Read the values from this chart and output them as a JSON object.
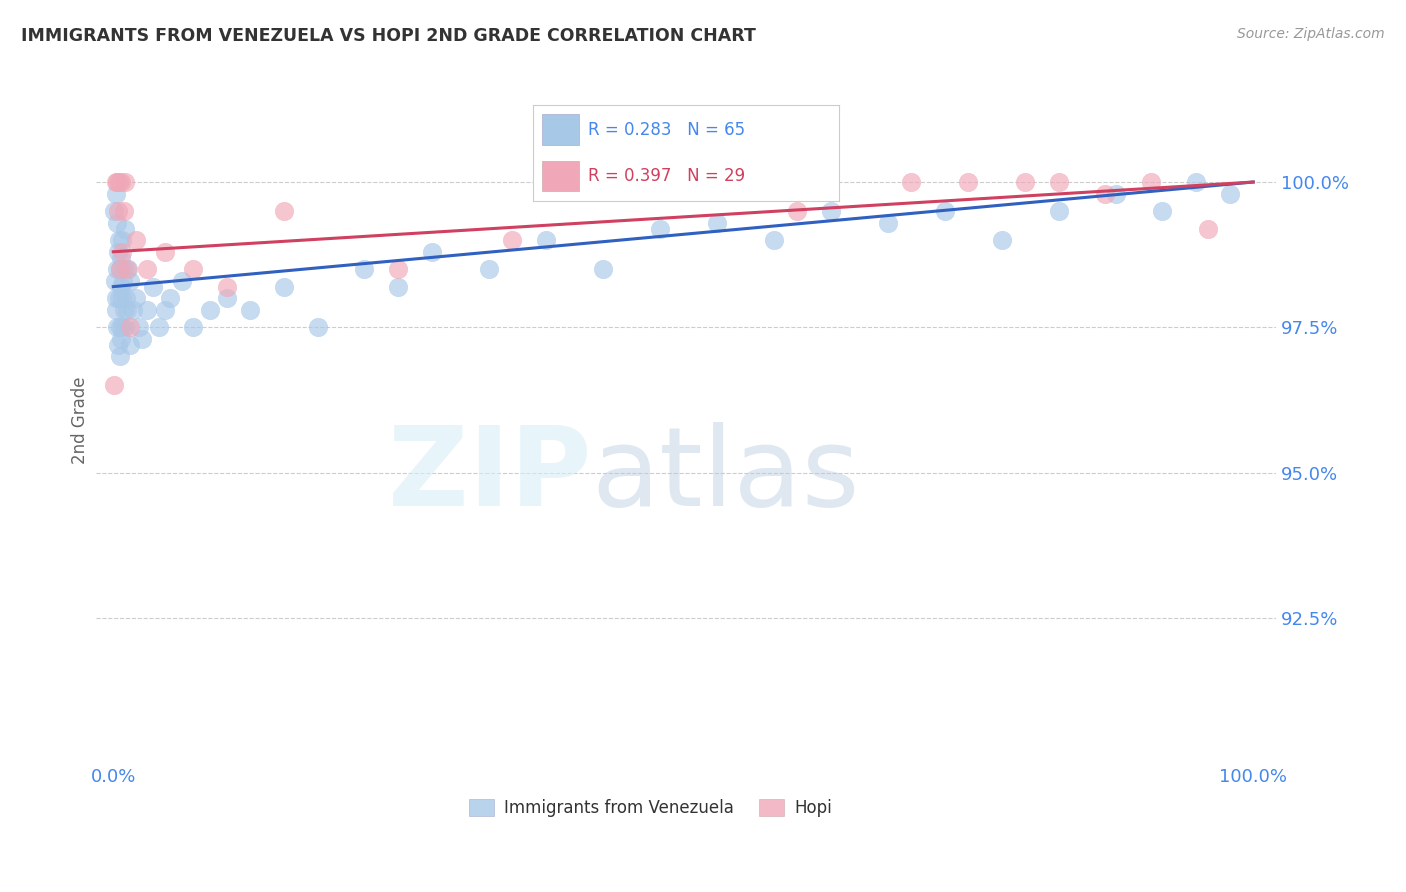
{
  "title": "IMMIGRANTS FROM VENEZUELA VS HOPI 2ND GRADE CORRELATION CHART",
  "source": "Source: ZipAtlas.com",
  "ylabel": "2nd Grade",
  "legend_blue_label": "Immigrants from Venezuela",
  "legend_pink_label": "Hopi",
  "legend_blue_r": "0.283",
  "legend_blue_n": "65",
  "legend_pink_r": "0.397",
  "legend_pink_n": "29",
  "blue_color": "#a8c8e8",
  "pink_color": "#f0a8b8",
  "blue_line_color": "#3060c0",
  "pink_line_color": "#d04060",
  "axis_label_color": "#4488ee",
  "title_color": "#333333",
  "grid_color": "#cccccc",
  "background_color": "#ffffff",
  "ylim": [
    90.0,
    101.8
  ],
  "xlim": [
    -1.5,
    102.0
  ],
  "yticks": [
    92.5,
    95.0,
    97.5,
    100.0
  ],
  "blue_x": [
    0.1,
    0.15,
    0.2,
    0.2,
    0.25,
    0.3,
    0.3,
    0.35,
    0.4,
    0.4,
    0.5,
    0.5,
    0.55,
    0.6,
    0.6,
    0.65,
    0.7,
    0.7,
    0.75,
    0.8,
    0.8,
    0.85,
    0.9,
    0.9,
    1.0,
    1.0,
    1.1,
    1.2,
    1.3,
    1.5,
    1.5,
    1.7,
    2.0,
    2.3,
    2.5,
    3.0,
    3.5,
    4.0,
    4.5,
    5.0,
    6.0,
    7.0,
    8.5,
    10.0,
    12.0,
    15.0,
    18.0,
    22.0,
    25.0,
    28.0,
    33.0,
    38.0,
    43.0,
    48.0,
    53.0,
    58.0,
    63.0,
    68.0,
    73.0,
    78.0,
    83.0,
    88.0,
    92.0,
    95.0,
    98.0
  ],
  "blue_y": [
    99.5,
    98.3,
    99.8,
    98.0,
    97.8,
    99.3,
    98.5,
    97.5,
    98.8,
    97.2,
    99.0,
    98.0,
    97.5,
    98.5,
    97.0,
    98.2,
    98.7,
    97.3,
    98.0,
    97.5,
    99.0,
    98.3,
    97.8,
    98.5,
    99.2,
    97.5,
    98.0,
    97.8,
    98.5,
    98.3,
    97.2,
    97.8,
    98.0,
    97.5,
    97.3,
    97.8,
    98.2,
    97.5,
    97.8,
    98.0,
    98.3,
    97.5,
    97.8,
    98.0,
    97.8,
    98.2,
    97.5,
    98.5,
    98.2,
    98.8,
    98.5,
    99.0,
    98.5,
    99.2,
    99.3,
    99.0,
    99.5,
    99.3,
    99.5,
    99.0,
    99.5,
    99.8,
    99.5,
    100.0,
    99.8
  ],
  "pink_x": [
    0.1,
    0.2,
    0.3,
    0.4,
    0.5,
    0.6,
    0.7,
    0.8,
    0.9,
    1.0,
    1.2,
    1.5,
    2.0,
    3.0,
    4.5,
    7.0,
    10.0,
    15.0,
    25.0,
    35.0,
    50.0,
    60.0,
    70.0,
    75.0,
    80.0,
    83.0,
    87.0,
    91.0,
    96.0
  ],
  "pink_y": [
    96.5,
    100.0,
    100.0,
    99.5,
    100.0,
    98.5,
    100.0,
    98.8,
    99.5,
    100.0,
    98.5,
    97.5,
    99.0,
    98.5,
    98.8,
    98.5,
    98.2,
    99.5,
    98.5,
    99.0,
    100.0,
    99.5,
    100.0,
    100.0,
    100.0,
    100.0,
    99.8,
    100.0,
    99.2
  ],
  "blue_line_start_y": 98.2,
  "blue_line_end_y": 100.0,
  "pink_line_start_y": 98.8,
  "pink_line_end_y": 100.0
}
